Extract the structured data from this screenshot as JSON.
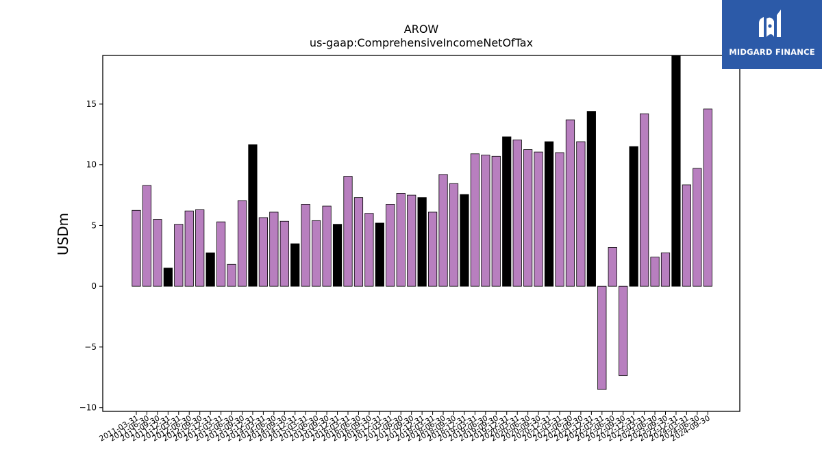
{
  "brand": {
    "name": "MIDGARD FINANCE",
    "color": "#2c5aa8"
  },
  "chart_data": {
    "type": "bar",
    "title": "AROW",
    "subtitle": "us-gaap:ComprehensiveIncomeNetOfTax",
    "xlabel": "",
    "ylabel": "USDm",
    "ylim": [
      -10.3,
      19
    ],
    "yticks": [
      -10,
      -5,
      0,
      5,
      10,
      15
    ],
    "colors": {
      "quarterly": "#b87fbf",
      "annual": "#000000"
    },
    "categories": [
      "2011-03-31",
      "2011-06-30",
      "2011-09-30",
      "2011-12-31",
      "2012-03-31",
      "2012-06-30",
      "2012-09-30",
      "2012-12-31",
      "2013-03-31",
      "2013-06-30",
      "2013-09-30",
      "2013-12-31",
      "2014-03-31",
      "2014-06-30",
      "2014-09-30",
      "2014-12-31",
      "2015-03-31",
      "2015-06-30",
      "2015-09-30",
      "2015-12-31",
      "2016-03-31",
      "2016-06-30",
      "2016-09-30",
      "2016-12-31",
      "2017-03-31",
      "2017-06-30",
      "2017-09-30",
      "2017-12-31",
      "2018-03-31",
      "2018-06-30",
      "2018-09-30",
      "2018-12-31",
      "2019-03-31",
      "2019-06-30",
      "2019-09-30",
      "2019-12-31",
      "2020-03-31",
      "2020-06-30",
      "2020-09-30",
      "2020-12-31",
      "2021-03-31",
      "2021-06-30",
      "2021-09-30",
      "2021-12-31",
      "2022-03-31",
      "2022-06-30",
      "2022-09-30",
      "2022-12-31",
      "2023-03-31",
      "2023-06-30",
      "2023-09-30",
      "2023-12-31",
      "2024-03-31",
      "2024-06-30",
      "2024-09-30"
    ],
    "values": [
      6.25,
      8.3,
      5.5,
      1.5,
      5.1,
      6.2,
      6.3,
      2.75,
      5.3,
      1.8,
      7.05,
      11.65,
      5.65,
      6.1,
      5.35,
      3.5,
      6.75,
      5.4,
      6.6,
      5.1,
      9.05,
      7.3,
      6.0,
      5.2,
      6.75,
      7.65,
      7.5,
      7.3,
      6.1,
      9.2,
      8.45,
      7.55,
      10.9,
      10.8,
      10.7,
      12.3,
      12.05,
      11.25,
      11.05,
      11.9,
      11.0,
      13.7,
      11.9,
      14.4,
      -8.5,
      3.2,
      -7.35,
      11.5,
      14.2,
      2.4,
      2.75,
      19.0,
      8.35,
      9.7,
      14.6
    ],
    "annual": [
      false,
      false,
      false,
      true,
      false,
      false,
      false,
      true,
      false,
      false,
      false,
      true,
      false,
      false,
      false,
      true,
      false,
      false,
      false,
      true,
      false,
      false,
      false,
      true,
      false,
      false,
      false,
      true,
      false,
      false,
      false,
      true,
      false,
      false,
      false,
      true,
      false,
      false,
      false,
      true,
      false,
      false,
      false,
      true,
      false,
      false,
      false,
      true,
      false,
      false,
      false,
      true,
      false,
      false,
      false
    ]
  }
}
